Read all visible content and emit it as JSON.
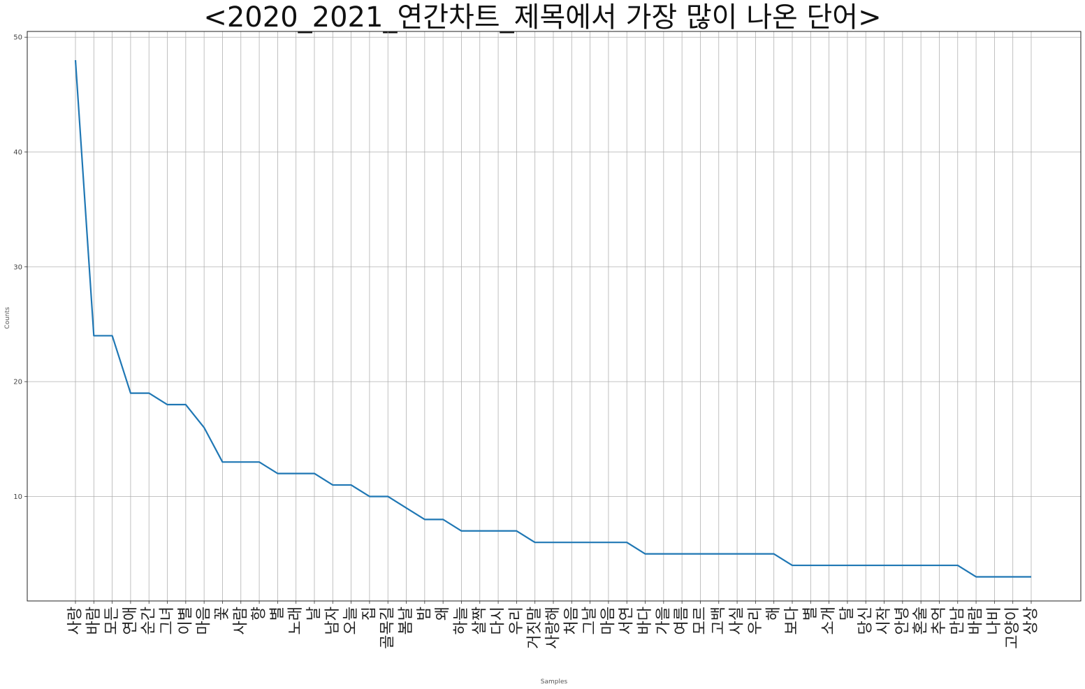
{
  "chart_data": {
    "type": "line",
    "title": "<2020_2021_연간차트_제목에서 가장 많이 나온 단어>",
    "xlabel": "Samples",
    "ylabel": "Counts",
    "ylim": [
      0.9,
      50.5
    ],
    "yticks": [
      10,
      20,
      30,
      40,
      50
    ],
    "grid": true,
    "line_color": "#1f77b4",
    "categories": [
      "사랑",
      "바람",
      "모든",
      "연애",
      "순간",
      "그녀",
      "이별",
      "마음",
      "꽃",
      "사람",
      "향",
      "별",
      "노래",
      "날",
      "남자",
      "오늘",
      "집",
      "골목길",
      "봄날",
      "밤",
      "왜",
      "하늘",
      "살짝",
      "다시",
      "우리",
      "거짓말",
      "사랑해",
      "처음",
      "그날",
      "마음",
      "서연",
      "바다",
      "가을",
      "여름",
      "모르",
      "고백",
      "사실",
      "우리",
      "해",
      "보다",
      "별",
      "소개",
      "달",
      "당신",
      "시작",
      "안녕",
      "혼술",
      "추억",
      "만남",
      "바람",
      "나비",
      "고양이",
      "상상"
    ],
    "values": [
      48,
      24,
      24,
      19,
      19,
      18,
      18,
      16,
      13,
      13,
      13,
      12,
      12,
      12,
      11,
      11,
      10,
      10,
      9,
      8,
      8,
      7,
      7,
      7,
      7,
      6,
      6,
      6,
      6,
      6,
      6,
      5,
      5,
      5,
      5,
      5,
      5,
      5,
      5,
      4,
      4,
      4,
      4,
      4,
      4,
      4,
      4,
      4,
      4,
      3,
      3,
      3,
      3
    ]
  }
}
